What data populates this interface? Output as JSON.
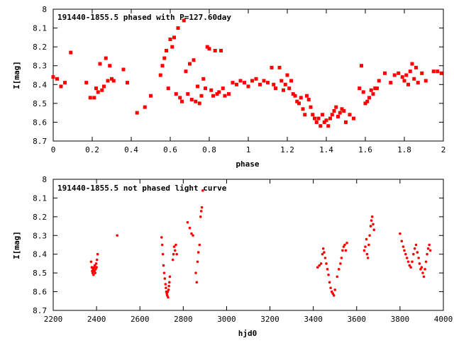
{
  "chart_data": [
    {
      "type": "scatter",
      "title": "191440-1855.5 phased with P=127.60day",
      "xlabel": "phase",
      "ylabel": "I[mag]",
      "xlim": [
        0,
        2
      ],
      "ylim": [
        8.7,
        8
      ],
      "x_ticks": [
        0,
        0.2,
        0.4,
        0.6,
        0.8,
        1,
        1.2,
        1.4,
        1.6,
        1.8,
        2
      ],
      "x_tick_labels": [
        "0",
        "0.2",
        "0.4",
        "0.6",
        "0.8",
        "1",
        "1.2",
        "1.4",
        "1.6",
        "1.8",
        "2"
      ],
      "y_ticks": [
        8,
        8.1,
        8.2,
        8.3,
        8.4,
        8.5,
        8.6,
        8.7
      ],
      "y_tick_labels": [
        "8",
        "8.1",
        "8.2",
        "8.3",
        "8.4",
        "8.5",
        "8.6",
        "8.7"
      ],
      "marker_color": "#ff0000",
      "series": [
        {
          "name": "phased",
          "points": [
            [
              0.0,
              8.36
            ],
            [
              0.02,
              8.37
            ],
            [
              0.04,
              8.41
            ],
            [
              0.06,
              8.39
            ],
            [
              0.09,
              8.23
            ],
            [
              0.17,
              8.39
            ],
            [
              0.19,
              8.47
            ],
            [
              0.21,
              8.47
            ],
            [
              0.22,
              8.42
            ],
            [
              0.23,
              8.44
            ],
            [
              0.24,
              8.29
            ],
            [
              0.25,
              8.43
            ],
            [
              0.26,
              8.41
            ],
            [
              0.27,
              8.26
            ],
            [
              0.28,
              8.38
            ],
            [
              0.29,
              8.3
            ],
            [
              0.3,
              8.37
            ],
            [
              0.31,
              8.38
            ],
            [
              0.36,
              8.32
            ],
            [
              0.38,
              8.39
            ],
            [
              0.43,
              8.55
            ],
            [
              0.47,
              8.52
            ],
            [
              0.5,
              8.46
            ],
            [
              0.55,
              8.35
            ],
            [
              0.56,
              8.3
            ],
            [
              0.57,
              8.26
            ],
            [
              0.58,
              8.22
            ],
            [
              0.59,
              8.42
            ],
            [
              0.6,
              8.16
            ],
            [
              0.61,
              8.2
            ],
            [
              0.62,
              8.15
            ],
            [
              0.63,
              8.45
            ],
            [
              0.64,
              8.1
            ],
            [
              0.65,
              8.47
            ],
            [
              0.66,
              8.49
            ],
            [
              0.67,
              8.06
            ],
            [
              0.68,
              8.33
            ],
            [
              0.69,
              8.45
            ],
            [
              0.7,
              8.29
            ],
            [
              0.71,
              8.48
            ],
            [
              0.72,
              8.27
            ],
            [
              0.73,
              8.49
            ],
            [
              0.74,
              8.41
            ],
            [
              0.75,
              8.5
            ],
            [
              0.76,
              8.46
            ],
            [
              0.77,
              8.37
            ],
            [
              0.78,
              8.42
            ],
            [
              0.79,
              8.2
            ],
            [
              0.8,
              8.21
            ],
            [
              0.81,
              8.43
            ],
            [
              0.82,
              8.46
            ],
            [
              0.83,
              8.22
            ],
            [
              0.84,
              8.45
            ],
            [
              0.85,
              8.44
            ],
            [
              0.86,
              8.22
            ],
            [
              0.87,
              8.42
            ],
            [
              0.88,
              8.46
            ],
            [
              0.9,
              8.45
            ],
            [
              0.92,
              8.39
            ],
            [
              0.94,
              8.4
            ],
            [
              0.96,
              8.38
            ],
            [
              0.98,
              8.39
            ],
            [
              1.0,
              8.41
            ],
            [
              1.02,
              8.38
            ],
            [
              1.04,
              8.37
            ],
            [
              1.06,
              8.4
            ],
            [
              1.08,
              8.38
            ],
            [
              1.1,
              8.39
            ],
            [
              1.12,
              8.31
            ],
            [
              1.13,
              8.4
            ],
            [
              1.14,
              8.42
            ],
            [
              1.16,
              8.31
            ],
            [
              1.17,
              8.38
            ],
            [
              1.18,
              8.43
            ],
            [
              1.19,
              8.4
            ],
            [
              1.2,
              8.35
            ],
            [
              1.21,
              8.42
            ],
            [
              1.22,
              8.38
            ],
            [
              1.23,
              8.45
            ],
            [
              1.24,
              8.46
            ],
            [
              1.25,
              8.49
            ],
            [
              1.26,
              8.5
            ],
            [
              1.27,
              8.47
            ],
            [
              1.28,
              8.53
            ],
            [
              1.29,
              8.56
            ],
            [
              1.3,
              8.46
            ],
            [
              1.31,
              8.48
            ],
            [
              1.32,
              8.52
            ],
            [
              1.33,
              8.56
            ],
            [
              1.34,
              8.58
            ],
            [
              1.35,
              8.6
            ],
            [
              1.36,
              8.58
            ],
            [
              1.37,
              8.62
            ],
            [
              1.38,
              8.56
            ],
            [
              1.39,
              8.6
            ],
            [
              1.4,
              8.59
            ],
            [
              1.41,
              8.62
            ],
            [
              1.42,
              8.58
            ],
            [
              1.43,
              8.56
            ],
            [
              1.44,
              8.54
            ],
            [
              1.45,
              8.52
            ],
            [
              1.46,
              8.57
            ],
            [
              1.47,
              8.55
            ],
            [
              1.48,
              8.53
            ],
            [
              1.49,
              8.54
            ],
            [
              1.5,
              8.6
            ],
            [
              1.52,
              8.56
            ],
            [
              1.54,
              8.58
            ],
            [
              1.57,
              8.42
            ],
            [
              1.58,
              8.3
            ],
            [
              1.59,
              8.44
            ],
            [
              1.6,
              8.5
            ],
            [
              1.61,
              8.49
            ],
            [
              1.62,
              8.47
            ],
            [
              1.63,
              8.43
            ],
            [
              1.64,
              8.45
            ],
            [
              1.65,
              8.42
            ],
            [
              1.66,
              8.42
            ],
            [
              1.67,
              8.38
            ],
            [
              1.7,
              8.34
            ],
            [
              1.73,
              8.39
            ],
            [
              1.75,
              8.35
            ],
            [
              1.77,
              8.34
            ],
            [
              1.79,
              8.36
            ],
            [
              1.8,
              8.38
            ],
            [
              1.81,
              8.35
            ],
            [
              1.82,
              8.4
            ],
            [
              1.83,
              8.33
            ],
            [
              1.84,
              8.29
            ],
            [
              1.85,
              8.37
            ],
            [
              1.86,
              8.31
            ],
            [
              1.87,
              8.39
            ],
            [
              1.89,
              8.34
            ],
            [
              1.91,
              8.38
            ],
            [
              1.95,
              8.33
            ],
            [
              1.97,
              8.33
            ],
            [
              1.99,
              8.34
            ]
          ]
        }
      ]
    },
    {
      "type": "scatter",
      "title": "191440-1855.5 not phased light curve",
      "xlabel": "hjd0",
      "ylabel": "I[mag]",
      "xlim": [
        2200,
        4000
      ],
      "ylim": [
        8.7,
        8
      ],
      "x_ticks": [
        2200,
        2400,
        2600,
        2800,
        3000,
        3200,
        3400,
        3600,
        3800,
        4000
      ],
      "x_tick_labels": [
        "2200",
        "2400",
        "2600",
        "2800",
        "3000",
        "3200",
        "3400",
        "3600",
        "3800",
        "4000"
      ],
      "y_ticks": [
        8,
        8.1,
        8.2,
        8.3,
        8.4,
        8.5,
        8.6,
        8.7
      ],
      "y_tick_labels": [
        "8",
        "8.1",
        "8.2",
        "8.3",
        "8.4",
        "8.5",
        "8.6",
        "8.7"
      ],
      "marker_color": "#ff0000",
      "series": [
        {
          "name": "light curve",
          "points": [
            [
              2375,
              8.44
            ],
            [
              2378,
              8.47
            ],
            [
              2380,
              8.49
            ],
            [
              2382,
              8.5
            ],
            [
              2384,
              8.48
            ],
            [
              2386,
              8.51
            ],
            [
              2388,
              8.47
            ],
            [
              2390,
              8.49
            ],
            [
              2392,
              8.46
            ],
            [
              2394,
              8.5
            ],
            [
              2396,
              8.48
            ],
            [
              2398,
              8.45
            ],
            [
              2400,
              8.47
            ],
            [
              2402,
              8.43
            ],
            [
              2405,
              8.4
            ],
            [
              2495,
              8.3
            ],
            [
              2700,
              8.31
            ],
            [
              2703,
              8.35
            ],
            [
              2706,
              8.4
            ],
            [
              2709,
              8.46
            ],
            [
              2712,
              8.5
            ],
            [
              2715,
              8.53
            ],
            [
              2718,
              8.56
            ],
            [
              2720,
              8.58
            ],
            [
              2722,
              8.6
            ],
            [
              2724,
              8.61
            ],
            [
              2726,
              8.62
            ],
            [
              2728,
              8.6
            ],
            [
              2730,
              8.63
            ],
            [
              2732,
              8.59
            ],
            [
              2734,
              8.57
            ],
            [
              2736,
              8.55
            ],
            [
              2738,
              8.52
            ],
            [
              2752,
              8.43
            ],
            [
              2755,
              8.4
            ],
            [
              2758,
              8.36
            ],
            [
              2762,
              8.38
            ],
            [
              2766,
              8.35
            ],
            [
              2770,
              8.4
            ],
            [
              2820,
              8.23
            ],
            [
              2830,
              8.26
            ],
            [
              2838,
              8.29
            ],
            [
              2845,
              8.3
            ],
            [
              2858,
              8.5
            ],
            [
              2862,
              8.55
            ],
            [
              2866,
              8.44
            ],
            [
              2870,
              8.39
            ],
            [
              2875,
              8.35
            ],
            [
              2880,
              8.2
            ],
            [
              2883,
              8.17
            ],
            [
              2886,
              8.15
            ],
            [
              2890,
              8.06
            ],
            [
              3420,
              8.47
            ],
            [
              3428,
              8.46
            ],
            [
              3436,
              8.45
            ],
            [
              3442,
              8.4
            ],
            [
              3446,
              8.37
            ],
            [
              3450,
              8.39
            ],
            [
              3455,
              8.42
            ],
            [
              3460,
              8.45
            ],
            [
              3465,
              8.48
            ],
            [
              3470,
              8.51
            ],
            [
              3475,
              8.55
            ],
            [
              3480,
              8.58
            ],
            [
              3485,
              8.6
            ],
            [
              3490,
              8.61
            ],
            [
              3495,
              8.62
            ],
            [
              3500,
              8.59
            ],
            [
              3510,
              8.52
            ],
            [
              3518,
              8.48
            ],
            [
              3525,
              8.45
            ],
            [
              3530,
              8.42
            ],
            [
              3535,
              8.38
            ],
            [
              3540,
              8.36
            ],
            [
              3545,
              8.35
            ],
            [
              3550,
              8.38
            ],
            [
              3555,
              8.34
            ],
            [
              3635,
              8.38
            ],
            [
              3640,
              8.36
            ],
            [
              3645,
              8.32
            ],
            [
              3648,
              8.4
            ],
            [
              3652,
              8.42
            ],
            [
              3656,
              8.35
            ],
            [
              3660,
              8.3
            ],
            [
              3665,
              8.25
            ],
            [
              3668,
              8.22
            ],
            [
              3672,
              8.2
            ],
            [
              3676,
              8.24
            ],
            [
              3680,
              8.27
            ],
            [
              3800,
              8.29
            ],
            [
              3808,
              8.33
            ],
            [
              3815,
              8.36
            ],
            [
              3820,
              8.38
            ],
            [
              3826,
              8.4
            ],
            [
              3832,
              8.42
            ],
            [
              3838,
              8.44
            ],
            [
              3844,
              8.46
            ],
            [
              3850,
              8.47
            ],
            [
              3856,
              8.44
            ],
            [
              3862,
              8.4
            ],
            [
              3868,
              8.37
            ],
            [
              3874,
              8.35
            ],
            [
              3880,
              8.39
            ],
            [
              3886,
              8.42
            ],
            [
              3890,
              8.45
            ],
            [
              3895,
              8.48
            ],
            [
              3900,
              8.47
            ],
            [
              3905,
              8.5
            ],
            [
              3910,
              8.52
            ],
            [
              3915,
              8.48
            ],
            [
              3920,
              8.44
            ],
            [
              3925,
              8.4
            ],
            [
              3930,
              8.37
            ],
            [
              3935,
              8.35
            ],
            [
              3940,
              8.38
            ]
          ]
        }
      ]
    }
  ]
}
